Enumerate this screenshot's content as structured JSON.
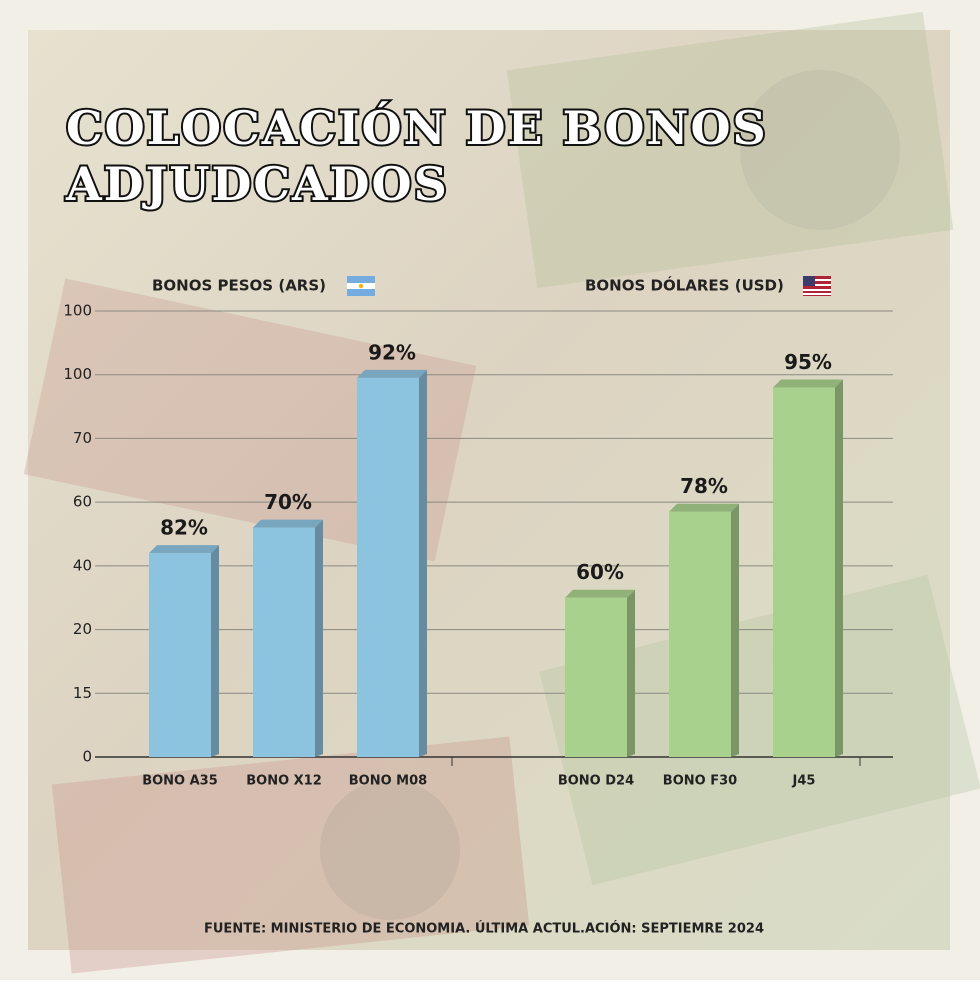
{
  "chart_data": {
    "type": "bar3d",
    "title": [
      "COLOCACIÓN DE BONOS",
      "ADJUDCADOS"
    ],
    "ylim": [
      0,
      7
    ],
    "yticks": [
      {
        "value": 0,
        "label": "0"
      },
      {
        "value": 1,
        "label": "15"
      },
      {
        "value": 2,
        "label": "20"
      },
      {
        "value": 3,
        "label": "40"
      },
      {
        "value": 4,
        "label": "60"
      },
      {
        "value": 5,
        "label": "70"
      },
      {
        "value": 6,
        "label": "100"
      },
      {
        "value": 7,
        "label": "100"
      }
    ],
    "grid": true,
    "series": [
      {
        "name": "BONOS PESOS (ARS)",
        "color": "#8cc3df",
        "categories": [
          "BONO A35",
          "BONO X12",
          "BONO M08"
        ],
        "values": [
          3.2,
          3.6,
          5.95
        ],
        "bar_labels": [
          "82%",
          "70%",
          "92%"
        ]
      },
      {
        "name": "BONOS DÓLARES (USD)",
        "color": "#a9d18e",
        "categories": [
          "BONO D24",
          "BONO F30",
          "J45"
        ],
        "values": [
          2.5,
          3.85,
          5.8
        ],
        "bar_labels": [
          "60%",
          "78%",
          "95%"
        ]
      }
    ],
    "source": "FUENTE: MINISTERIO DE ECONOMIA. ÚLTIMA ACTUL.ACIÓN: SEPTIEMRE 2024"
  }
}
